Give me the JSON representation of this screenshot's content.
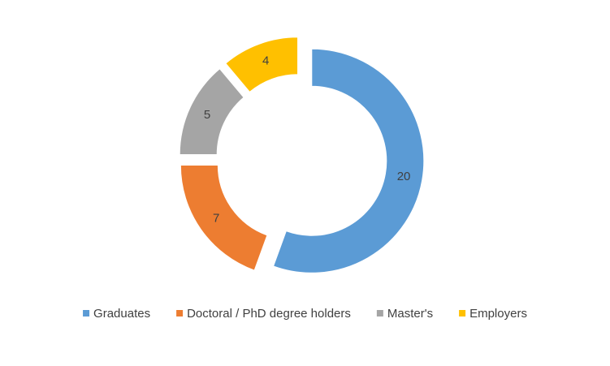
{
  "chart_data": {
    "type": "doughnut",
    "categories": [
      "Graduates",
      "Doctoral / PhD degree holders",
      "Master's",
      "Employers"
    ],
    "values": [
      20,
      7,
      5,
      4
    ],
    "colors": [
      "#5b9bd5",
      "#ed7d31",
      "#a5a5a5",
      "#ffc000"
    ],
    "exploded": true,
    "legend": "bottom"
  }
}
